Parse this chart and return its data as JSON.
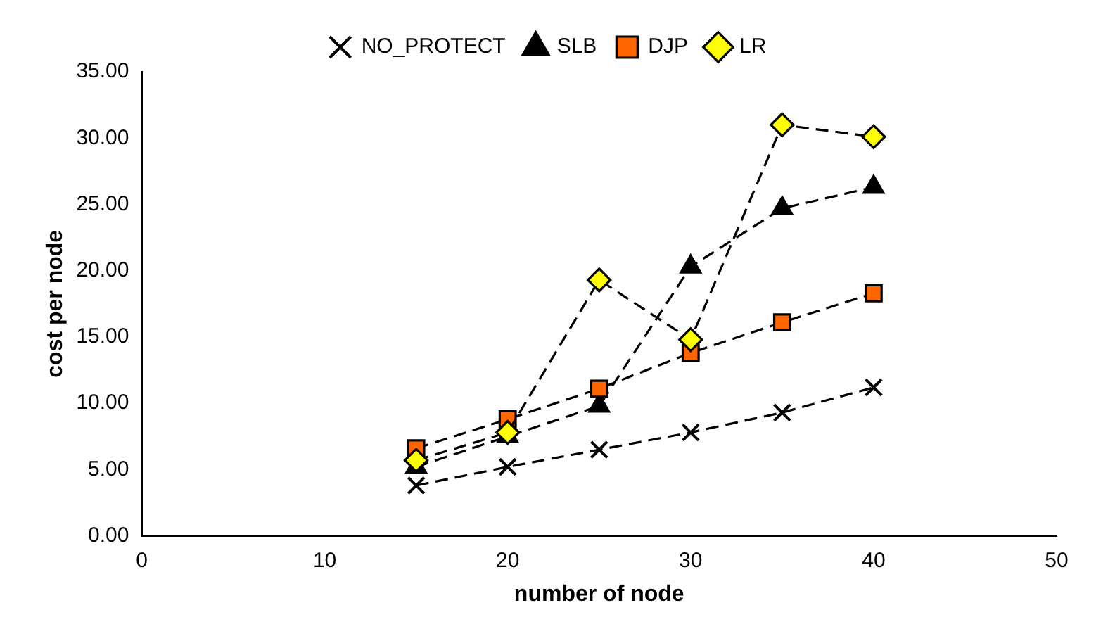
{
  "chart_data": {
    "type": "line",
    "xlabel": "number of node",
    "ylabel": "cost per node",
    "x": [
      15,
      20,
      25,
      30,
      35,
      40
    ],
    "series": [
      {
        "name": "NO_PROTECT",
        "color": "#000000",
        "marker": "cross",
        "values": [
          3.8,
          5.2,
          6.5,
          7.8,
          9.3,
          11.2
        ]
      },
      {
        "name": "SLB",
        "color": "#000000",
        "marker": "triangle",
        "values": [
          5.2,
          7.5,
          9.8,
          20.3,
          24.7,
          26.3
        ]
      },
      {
        "name": "DJP",
        "color": "#ff6600",
        "marker": "square",
        "values": [
          6.6,
          8.8,
          11.1,
          13.8,
          16.1,
          18.3
        ]
      },
      {
        "name": "LR",
        "color": "#ffff00",
        "marker": "diamond",
        "values": [
          5.7,
          7.8,
          19.3,
          14.8,
          31.0,
          30.1
        ]
      }
    ],
    "xlim": [
      0,
      50
    ],
    "xticks": [
      0,
      10,
      20,
      30,
      40,
      50
    ],
    "ylim": [
      0,
      35
    ],
    "yticks": [
      {
        "value": 0,
        "label": "0.00"
      },
      {
        "value": 5,
        "label": "5.00"
      },
      {
        "value": 10,
        "label": "10.00"
      },
      {
        "value": 15,
        "label": "15.00"
      },
      {
        "value": 20,
        "label": "20.00"
      },
      {
        "value": 25,
        "label": "25.00"
      },
      {
        "value": 30,
        "label": "30.00"
      },
      {
        "value": 35,
        "label": "35.00"
      }
    ],
    "grid": false,
    "legend": "top",
    "line_style": "dashed"
  }
}
